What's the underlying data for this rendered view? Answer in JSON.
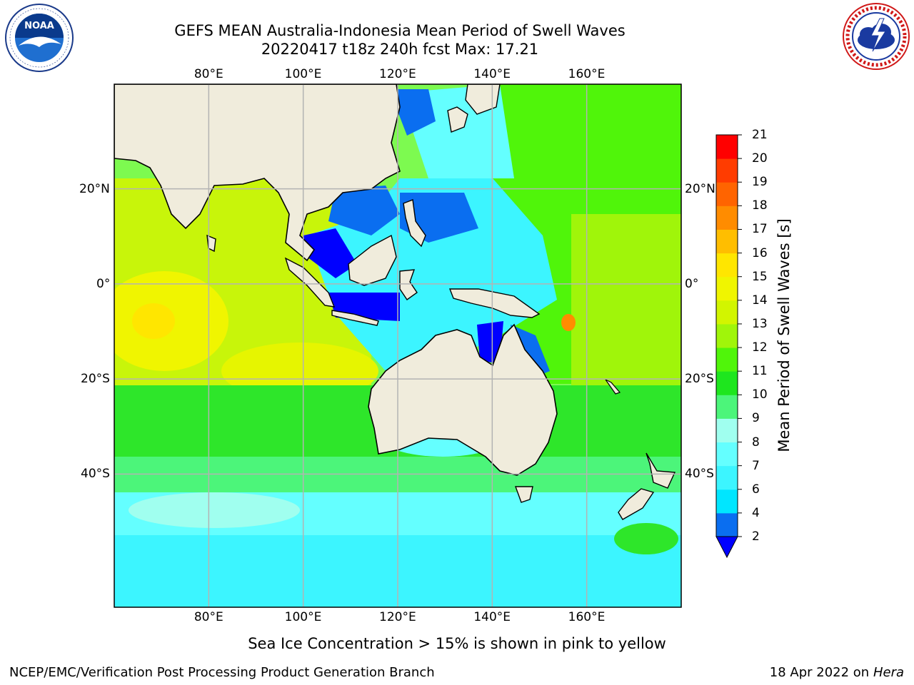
{
  "header": {
    "title_line1": "GEFS MEAN Australia-Indonesia Mean Period of Swell Waves",
    "title_line2": "20220417 t18z 240h fcst   Max: 17.21"
  },
  "logos": {
    "left": {
      "icon": "noaa-logo-icon",
      "text": "NOAA",
      "ring_text": "NATIONAL OCEANIC AND ATMOSPHERIC ADMINISTRATION · U.S. DEPARTMENT OF COMMERCE"
    },
    "right": {
      "icon": "nws-logo-icon",
      "ring_text": "NATIONAL WEATHER SERVICE"
    }
  },
  "map": {
    "lon_ticks": [
      "80°E",
      "100°E",
      "120°E",
      "140°E",
      "160°E"
    ],
    "lat_ticks_left": [
      "20°N",
      "0°",
      "20°S",
      "40°S"
    ],
    "lat_ticks_right": [
      "20°N",
      "0°",
      "20°S",
      "40°S"
    ],
    "lon_range": [
      60,
      180
    ],
    "lat_range": [
      -68,
      42
    ],
    "gridlines": true,
    "colors": {
      "land": "#f0ecdc",
      "grid": "#b3b3b3",
      "coast": "#000000"
    }
  },
  "colorbar": {
    "label": "Mean Period of Swell Waves [s]",
    "ticks": [
      "2",
      "4",
      "6",
      "7",
      "8",
      "9",
      "10",
      "11",
      "12",
      "13",
      "14",
      "15",
      "16",
      "17",
      "18",
      "19",
      "20",
      "21"
    ],
    "colors": [
      "#0a6ef0",
      "#00e6ff",
      "#3cf5ff",
      "#64ffff",
      "#a0ffef",
      "#4cf57a",
      "#1ee61e",
      "#50f50a",
      "#a0f50a",
      "#d2f500",
      "#f0f500",
      "#ffe600",
      "#ffbe00",
      "#ff8c00",
      "#ff6400",
      "#ff3c00",
      "#ff0000"
    ],
    "extend_color": "#0000ff"
  },
  "notes": {
    "sea_ice": "Sea Ice Concentration > 15% is shown in pink to yellow"
  },
  "footer": {
    "left": "NCEP/EMC/Verification Post Processing Product Generation Branch",
    "date": "18 Apr 2022 on",
    "host": "Hera"
  }
}
